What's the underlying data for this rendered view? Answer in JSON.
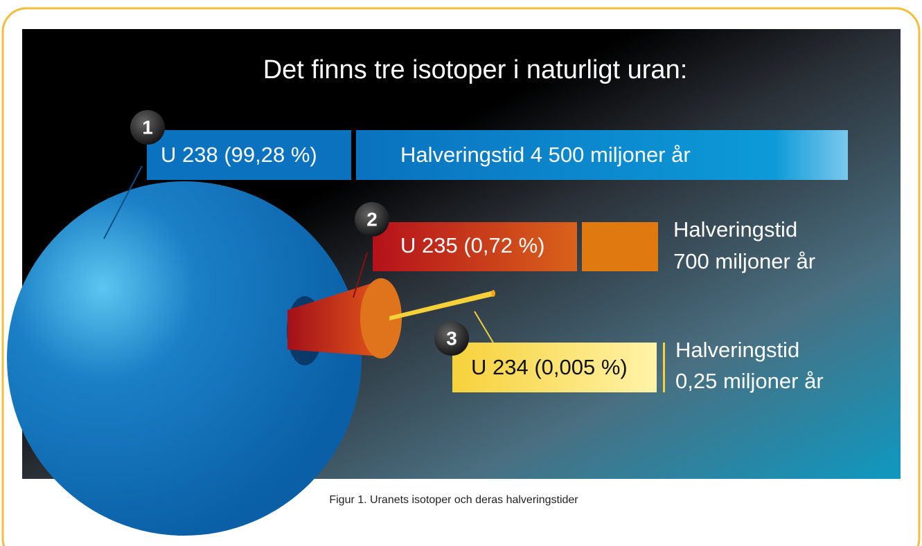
{
  "title": "Det finns tre isotoper i naturligt uran:",
  "isotopes": [
    {
      "number": "1",
      "label": "U 238 (99,28 %)",
      "half_life": [
        "Halveringstid 4 500 miljoner år"
      ]
    },
    {
      "number": "2",
      "label": "U 235 (0,72 %)",
      "half_life": [
        "Halveringstid",
        "700 miljoner år"
      ]
    },
    {
      "number": "3",
      "label": "U 234 (0,005 %)",
      "half_life": [
        "Halveringstid",
        "0,25 miljoner år"
      ]
    }
  ],
  "caption": "Figur 1. Uranets isotoper och deras halveringstider"
}
